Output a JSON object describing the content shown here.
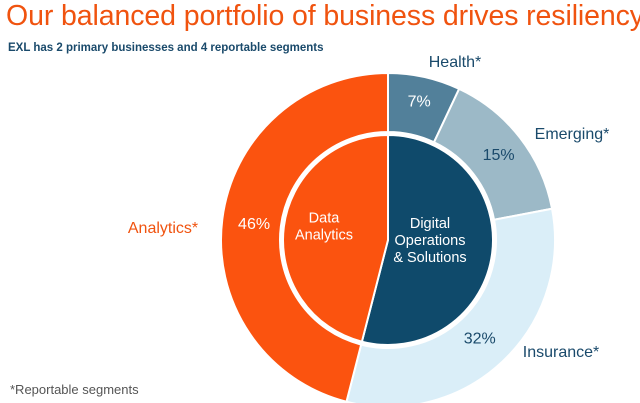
{
  "header": {
    "title": "Our balanced portfolio of business drives resiliency",
    "subtitle": "EXL has 2 primary businesses and 4 reportable segments"
  },
  "footnote": "*Reportable segments",
  "chart_data": {
    "type": "pie",
    "style": "nested-donut",
    "outer_ring": [
      {
        "label": "Health*",
        "value": 7,
        "value_label": "7%",
        "color": "#52809a"
      },
      {
        "label": "Emerging*",
        "value": 15,
        "value_label": "15%",
        "color": "#9cb9c7"
      },
      {
        "label": "Insurance*",
        "value": 32,
        "value_label": "32%",
        "color": "#daeef8"
      },
      {
        "label": "Analytics*",
        "value": 46,
        "value_label": "46%",
        "color": "#fb530f"
      }
    ],
    "inner_ring": [
      {
        "label_lines": [
          "Digital",
          "Operations",
          "& Solutions"
        ],
        "value": 54,
        "color": "#0f4a6b"
      },
      {
        "label_lines": [
          "Data",
          "Analytics"
        ],
        "value": 46,
        "color": "#fb530f"
      }
    ],
    "colors": {
      "analytics_label": "#f0530f",
      "segment_label": "#1a4a6b",
      "percent_dark": "#ffffff",
      "percent_light": "#1a4a6b",
      "border": "#ffffff"
    }
  }
}
